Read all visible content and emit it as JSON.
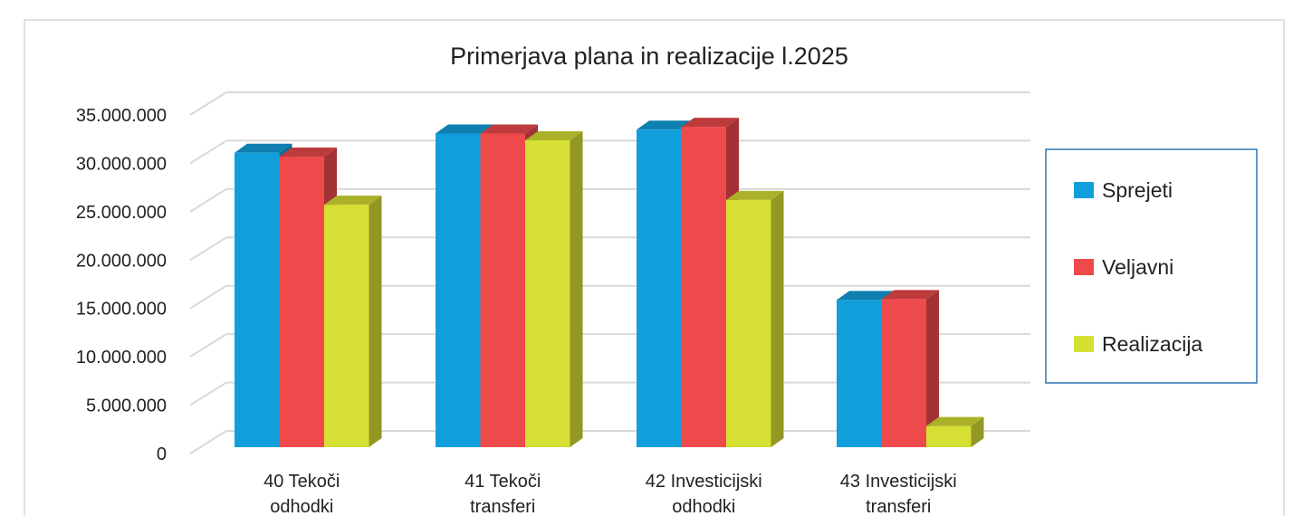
{
  "chart_data": {
    "type": "bar",
    "title": "Primerjava plana in realizacije l.2025",
    "categories": [
      "40 Tekoči odhodki",
      "41 Tekoči transferi",
      "42 Investicijski odhodki",
      "43 Investicijski transferi"
    ],
    "category_lines": [
      [
        "40 Tekoči",
        "odhodki"
      ],
      [
        "41 Tekoči",
        "transferi"
      ],
      [
        "42 Investicijski",
        "odhodki"
      ],
      [
        "43 Investicijski",
        "transferi"
      ]
    ],
    "series": [
      {
        "name": "Sprejeti",
        "color": "#119fdb",
        "values": [
          30600000,
          32600000,
          33000000,
          15300000
        ]
      },
      {
        "name": "Veljavni",
        "color": "#ee4a4c",
        "values": [
          30200000,
          32600000,
          33300000,
          15400000
        ]
      },
      {
        "name": "Realizacija",
        "color": "#d6df33",
        "values": [
          25200000,
          31900000,
          25700000,
          2200000
        ]
      }
    ],
    "ylim": [
      0,
      35000000
    ],
    "yticks": [
      "0",
      "5.000.000",
      "10.000.000",
      "15.000.000",
      "20.000.000",
      "25.000.000",
      "30.000.000",
      "35.000.000"
    ],
    "grid": true,
    "legend": "right",
    "style": "3d-column"
  }
}
